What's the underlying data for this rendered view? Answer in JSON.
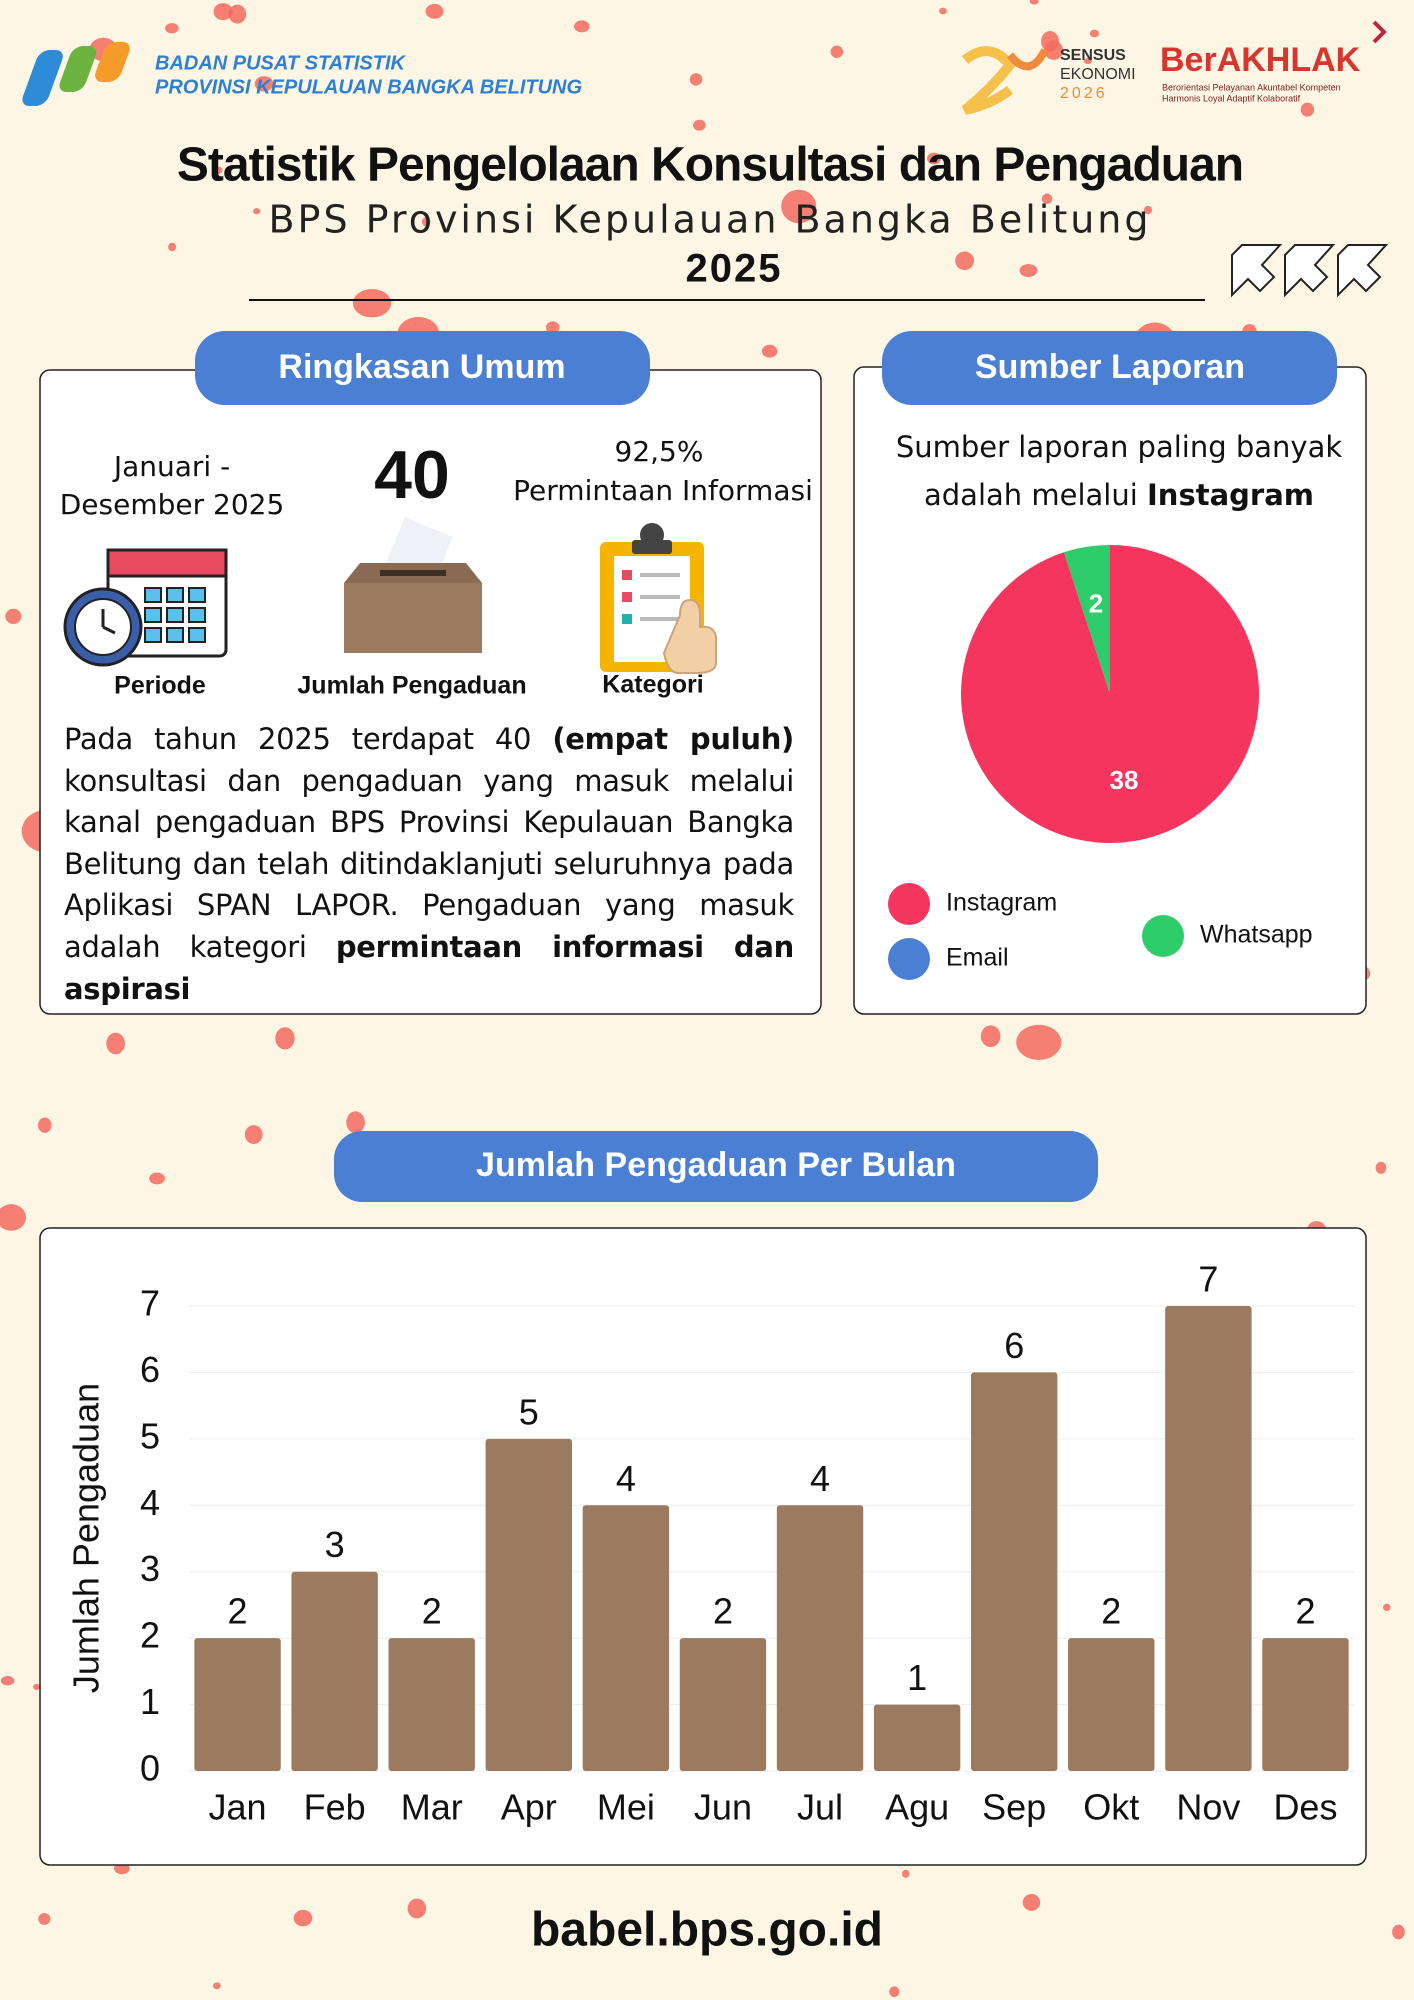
{
  "header": {
    "org_line1": "BADAN PUSAT STATISTIK",
    "org_line2": "PROVINSI KEPULAUAN BANGKA BELITUNG",
    "sensus": [
      "SENSUS",
      "EKONOMI",
      "2026"
    ],
    "berakhlak": "BerAKHLAK",
    "berakhlak_sub": [
      "Berorientasi Pelayanan Akuntabel Kompeten",
      "Harmonis Loyal Adaptif Kolaboratif"
    ],
    "title": "Statistik Pengelolaan Konsultasi dan Pengaduan",
    "subtitle": "BPS Provinsi Kepulauan Bangka Belitung",
    "year": "2025"
  },
  "summary": {
    "heading": "Ringkasan Umum",
    "period": [
      "Januari -",
      "Desember 2025"
    ],
    "total": 40,
    "share": "92,5%",
    "share_label": "Permintaan Informasi",
    "labels": [
      "Periode",
      "Jumlah Pengaduan",
      "Kategori"
    ],
    "paragraph": [
      {
        "text": "Pada tahun 2025 terdapat 40 ",
        "bold": false
      },
      {
        "text": "(empat puluh)",
        "bold": true
      },
      {
        "text": " konsultasi dan pengaduan yang masuk melalui kanal pengaduan BPS Provinsi Kepulauan Bangka Belitung dan telah ditindaklanjuti seluruhnya pada Aplikasi SPAN LAPOR. Pengaduan yang masuk adalah kategori ",
        "bold": false
      },
      {
        "text": "permintaan informasi dan aspirasi",
        "bold": true
      }
    ]
  },
  "chart_data": [
    {
      "type": "pie",
      "title": "Sumber Laporan",
      "note": [
        "Sumber laporan paling banyak",
        "adalah melalui "
      ],
      "note_emphasis": "Instagram",
      "categories": [
        "Instagram",
        "Email",
        "Whatsapp"
      ],
      "values": [
        38,
        0,
        2
      ],
      "colors": [
        "#f4365e",
        "#4a80d4",
        "#2ecc6a"
      ]
    },
    {
      "type": "bar",
      "title": "Jumlah Pengaduan Per Bulan",
      "y_label": "Jumlah Pengaduan",
      "categories": [
        "Jan",
        "Feb",
        "Mar",
        "Apr",
        "Mei",
        "Jun",
        "Jul",
        "Agu",
        "Sep",
        "Okt",
        "Nov",
        "Des"
      ],
      "values": [
        2,
        3,
        2,
        5,
        4,
        2,
        4,
        1,
        6,
        2,
        7,
        2
      ],
      "color": "#9c7a5f",
      "ylim": [
        0,
        7
      ],
      "yticks": [
        0,
        1,
        2,
        3,
        4,
        5,
        6,
        7
      ],
      "grid": true
    }
  ],
  "footer": "babel.bps.go.id"
}
